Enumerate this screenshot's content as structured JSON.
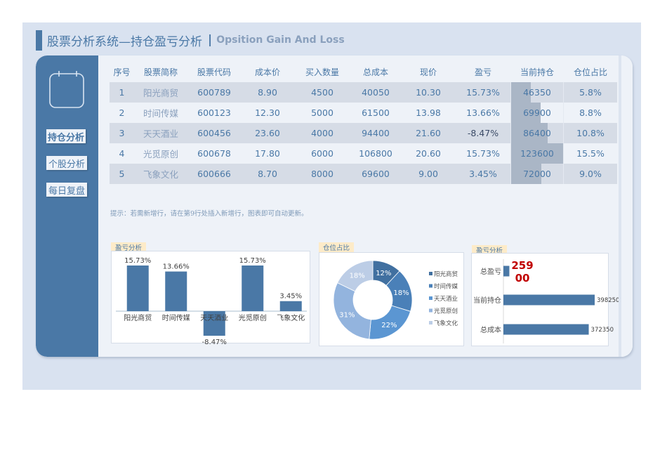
{
  "header": {
    "title_cn": "股票分析系统—持仓盈亏分析",
    "separator": "|",
    "title_en": "Opsition Gain And Loss"
  },
  "sidebar": {
    "icon": "calendar-icon",
    "items": [
      {
        "label": "持仓分析",
        "active": true
      },
      {
        "label": "个股分析",
        "active": false
      },
      {
        "label": "每日复盘",
        "active": false
      }
    ]
  },
  "table": {
    "headers": [
      "序号",
      "股票简称",
      "股票代码",
      "成本价",
      "买入数量",
      "总成本",
      "现价",
      "盈亏",
      "当前持仓",
      "仓位占比"
    ],
    "rows": [
      {
        "no": "1",
        "name": "阳光商贸",
        "code": "600789",
        "cost": "8.90",
        "qty": "4500",
        "total": "40050",
        "price": "10.30",
        "pl": "15.73%",
        "hold": "46350",
        "ratio": "5.8%"
      },
      {
        "no": "2",
        "name": "时间传媒",
        "code": "600123",
        "cost": "12.30",
        "qty": "5000",
        "total": "61500",
        "price": "13.98",
        "pl": "13.66%",
        "hold": "69900",
        "ratio": "8.8%"
      },
      {
        "no": "3",
        "name": "天天酒业",
        "code": "600456",
        "cost": "23.60",
        "qty": "4000",
        "total": "94400",
        "price": "21.60",
        "pl": "-8.47%",
        "hold": "86400",
        "ratio": "10.8%"
      },
      {
        "no": "4",
        "name": "光觅原创",
        "code": "600678",
        "cost": "17.80",
        "qty": "6000",
        "total": "106800",
        "price": "20.60",
        "pl": "15.73%",
        "hold": "123600",
        "ratio": "15.5%"
      },
      {
        "no": "5",
        "name": "飞象文化",
        "code": "600666",
        "cost": "8.70",
        "qty": "8000",
        "total": "69600",
        "price": "9.00",
        "pl": "3.45%",
        "hold": "72000",
        "ratio": "9.0%"
      }
    ]
  },
  "hint": "提示：若需新增行，请在第9行处插入新增行，图表即可自动更新。",
  "charts": {
    "pl_bar": {
      "tag": "盈亏分析"
    },
    "position_donut": {
      "tag": "仓位占比"
    },
    "summary_hbar": {
      "tag": "盈亏分析",
      "total_pl_label": "25900",
      "total_pl_line1": "259",
      "total_pl_line2": "00"
    }
  },
  "colors": {
    "accent": "#4a78a6",
    "negative_text": "#3a4a66",
    "highlight_red": "#c00000",
    "donut": [
      "#4170a0",
      "#4a80b8",
      "#5b96d2",
      "#93b4de",
      "#bccde6"
    ]
  },
  "chart_data": [
    {
      "type": "bar",
      "title": "盈亏分析",
      "categories": [
        "阳光商贸",
        "时间传媒",
        "天天酒业",
        "光觅原创",
        "飞象文化"
      ],
      "values": [
        15.73,
        13.66,
        -8.47,
        15.73,
        3.45
      ],
      "value_labels": [
        "15.73%",
        "13.66%",
        "-8.47%",
        "15.73%",
        "3.45%"
      ],
      "xlabel": "",
      "ylabel": "",
      "grid": false,
      "legend": false
    },
    {
      "type": "pie",
      "title": "仓位占比",
      "categories": [
        "阳光商贸",
        "时间传媒",
        "天天酒业",
        "光觅原创",
        "飞象文化"
      ],
      "values": [
        12,
        18,
        22,
        31,
        18
      ],
      "value_labels": [
        "12%",
        "18%",
        "22%",
        "31%",
        "18%"
      ],
      "donut": true,
      "legend": "right"
    },
    {
      "type": "bar",
      "orientation": "horizontal",
      "title": "盈亏分析",
      "categories": [
        "总盈亏",
        "当前持仓",
        "总成本"
      ],
      "values": [
        25900,
        398250,
        372350
      ],
      "value_labels": [
        "25900",
        "398250",
        "372350"
      ],
      "grid": false,
      "legend": false
    }
  ]
}
